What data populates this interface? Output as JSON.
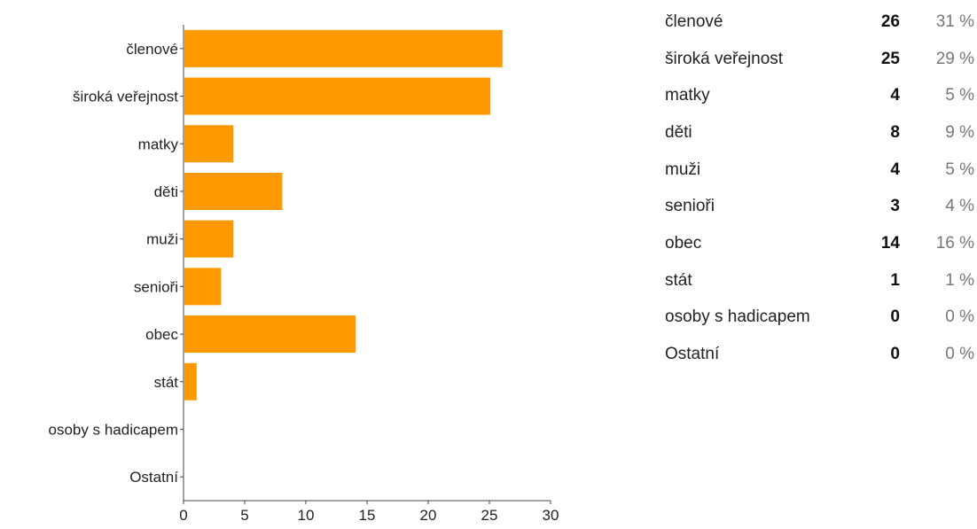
{
  "chart_data": {
    "type": "bar",
    "orientation": "horizontal",
    "categories": [
      "členové",
      "široká veřejnost",
      "matky",
      "děti",
      "muži",
      "senioři",
      "obec",
      "stát",
      "osoby s hadicapem",
      "Ostatní"
    ],
    "values": [
      26,
      25,
      4,
      8,
      4,
      3,
      14,
      1,
      0,
      0
    ],
    "xlim": [
      0,
      30
    ],
    "x_ticks": [
      0,
      5,
      10,
      15,
      20,
      25,
      30
    ],
    "grid": false,
    "bar_color": "#ff9900"
  },
  "summary_table": {
    "rows": [
      {
        "category": "členové",
        "count": "26",
        "percent": "31 %"
      },
      {
        "category": "široká veřejnost",
        "count": "25",
        "percent": "29 %"
      },
      {
        "category": "matky",
        "count": "4",
        "percent": "5 %"
      },
      {
        "category": "děti",
        "count": "8",
        "percent": "9 %"
      },
      {
        "category": "muži",
        "count": "4",
        "percent": "5 %"
      },
      {
        "category": "senioři",
        "count": "3",
        "percent": "4 %"
      },
      {
        "category": "obec",
        "count": "14",
        "percent": "16 %"
      },
      {
        "category": "stát",
        "count": "1",
        "percent": "1 %"
      },
      {
        "category": "osoby s hadicapem",
        "count": "0",
        "percent": "0 %"
      },
      {
        "category": "Ostatní",
        "count": "0",
        "percent": "0 %"
      }
    ]
  }
}
